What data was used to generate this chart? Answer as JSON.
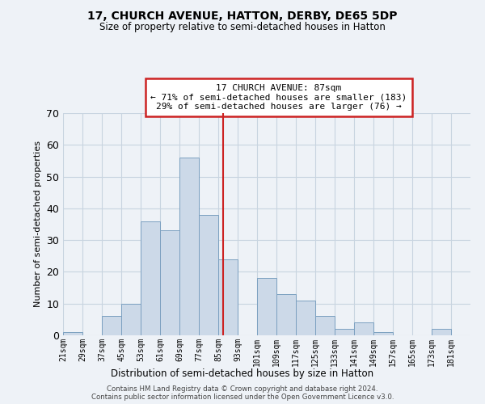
{
  "title": "17, CHURCH AVENUE, HATTON, DERBY, DE65 5DP",
  "subtitle": "Size of property relative to semi-detached houses in Hatton",
  "xlabel": "Distribution of semi-detached houses by size in Hatton",
  "ylabel": "Number of semi-detached properties",
  "bin_labels": [
    "21sqm",
    "29sqm",
    "37sqm",
    "45sqm",
    "53sqm",
    "61sqm",
    "69sqm",
    "77sqm",
    "85sqm",
    "93sqm",
    "101sqm",
    "109sqm",
    "117sqm",
    "125sqm",
    "133sqm",
    "141sqm",
    "149sqm",
    "157sqm",
    "165sqm",
    "173sqm",
    "181sqm"
  ],
  "bin_edges": [
    21,
    29,
    37,
    45,
    53,
    61,
    69,
    77,
    85,
    93,
    101,
    109,
    117,
    125,
    133,
    141,
    149,
    157,
    165,
    173,
    181,
    189
  ],
  "counts": [
    1,
    0,
    6,
    10,
    36,
    33,
    56,
    38,
    24,
    0,
    18,
    13,
    11,
    6,
    2,
    4,
    1,
    0,
    0,
    2,
    0
  ],
  "bar_facecolor": "#ccd9e8",
  "bar_edgecolor": "#7ba0c0",
  "grid_color": "#c8d4e0",
  "property_line_x": 87,
  "annotation_title": "17 CHURCH AVENUE: 87sqm",
  "annotation_line1": "← 71% of semi-detached houses are smaller (183)",
  "annotation_line2": "29% of semi-detached houses are larger (76) →",
  "annotation_box_facecolor": "#ffffff",
  "annotation_box_edgecolor": "#cc2222",
  "vline_color": "#cc2222",
  "ylim": [
    0,
    70
  ],
  "yticks": [
    0,
    10,
    20,
    30,
    40,
    50,
    60,
    70
  ],
  "footer": "Contains HM Land Registry data © Crown copyright and database right 2024.\nContains public sector information licensed under the Open Government Licence v3.0.",
  "background_color": "#eef2f7"
}
